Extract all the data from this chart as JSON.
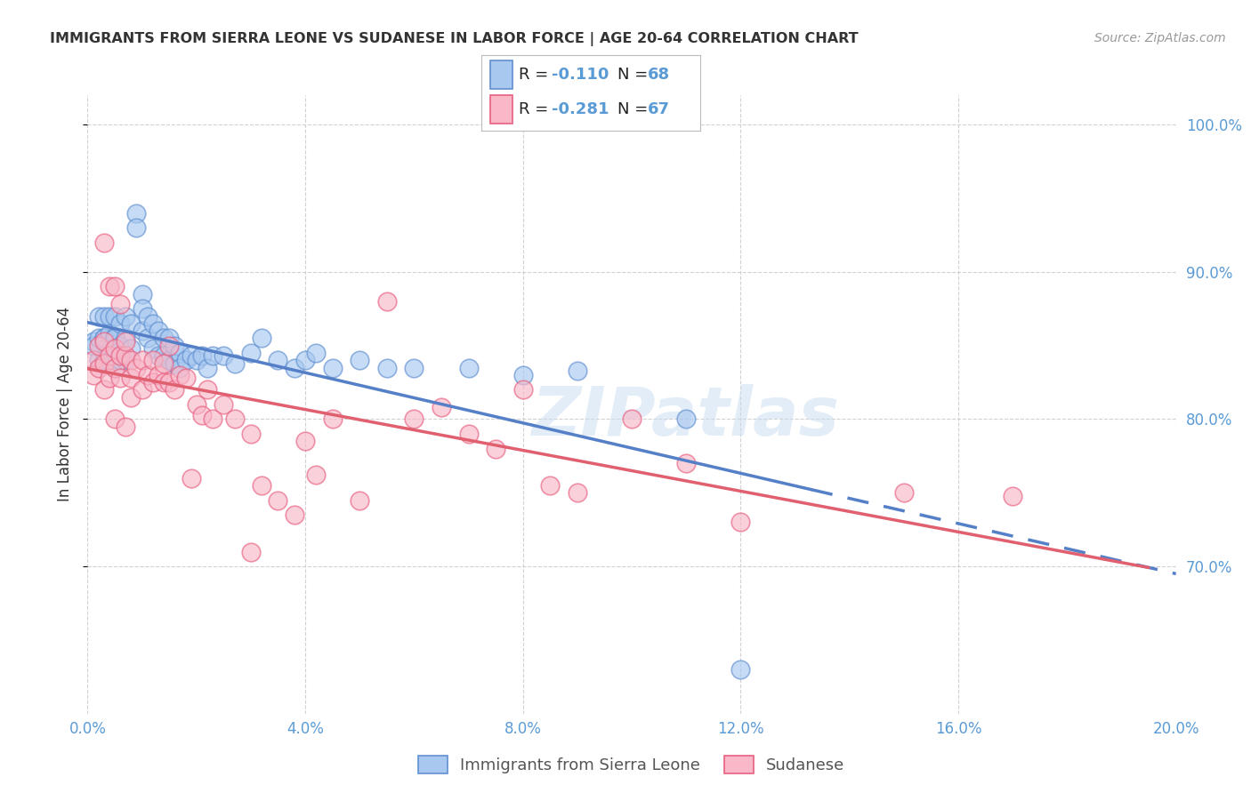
{
  "title": "IMMIGRANTS FROM SIERRA LEONE VS SUDANESE IN LABOR FORCE | AGE 20-64 CORRELATION CHART",
  "source": "Source: ZipAtlas.com",
  "ylabel": "In Labor Force | Age 20-64",
  "legend_label_1": "Immigrants from Sierra Leone",
  "legend_label_2": "Sudanese",
  "r1": -0.11,
  "n1": 68,
  "r2": -0.281,
  "n2": 67,
  "xlim": [
    0.0,
    0.2
  ],
  "ylim": [
    0.6,
    1.02
  ],
  "yticks": [
    0.7,
    0.8,
    0.9,
    1.0
  ],
  "xticks": [
    0.0,
    0.04,
    0.08,
    0.12,
    0.16,
    0.2
  ],
  "color_blue_fill": "#A8C8F0",
  "color_pink_fill": "#F8B8C8",
  "color_blue_edge": "#6090D0",
  "color_pink_edge": "#E86080",
  "color_blue_line": "#5580C8",
  "color_pink_line": "#E06070",
  "color_axis_labels": "#5B9BD5",
  "color_text_dark": "#333333",
  "background_color": "#FFFFFF",
  "watermark": "ZIPatlas",
  "sierra_leone_x": [
    0.001,
    0.001,
    0.002,
    0.002,
    0.002,
    0.003,
    0.003,
    0.003,
    0.003,
    0.004,
    0.004,
    0.004,
    0.004,
    0.005,
    0.005,
    0.005,
    0.005,
    0.005,
    0.006,
    0.006,
    0.006,
    0.007,
    0.007,
    0.007,
    0.008,
    0.008,
    0.009,
    0.009,
    0.01,
    0.01,
    0.01,
    0.011,
    0.011,
    0.012,
    0.012,
    0.013,
    0.013,
    0.014,
    0.014,
    0.015,
    0.015,
    0.016,
    0.016,
    0.017,
    0.017,
    0.018,
    0.019,
    0.02,
    0.021,
    0.022,
    0.023,
    0.025,
    0.027,
    0.03,
    0.032,
    0.035,
    0.038,
    0.04,
    0.042,
    0.045,
    0.05,
    0.055,
    0.06,
    0.07,
    0.08,
    0.09,
    0.11,
    0.12
  ],
  "sierra_leone_y": [
    0.853,
    0.85,
    0.87,
    0.855,
    0.84,
    0.87,
    0.855,
    0.84,
    0.855,
    0.87,
    0.858,
    0.845,
    0.84,
    0.87,
    0.856,
    0.845,
    0.835,
    0.855,
    0.865,
    0.85,
    0.84,
    0.87,
    0.855,
    0.84,
    0.865,
    0.848,
    0.94,
    0.93,
    0.885,
    0.875,
    0.86,
    0.87,
    0.855,
    0.865,
    0.848,
    0.86,
    0.843,
    0.855,
    0.843,
    0.855,
    0.84,
    0.85,
    0.838,
    0.845,
    0.835,
    0.84,
    0.843,
    0.84,
    0.843,
    0.835,
    0.843,
    0.843,
    0.838,
    0.845,
    0.855,
    0.84,
    0.835,
    0.84,
    0.845,
    0.835,
    0.84,
    0.835,
    0.835,
    0.835,
    0.83,
    0.833,
    0.8,
    0.63
  ],
  "sudanese_x": [
    0.001,
    0.001,
    0.002,
    0.002,
    0.003,
    0.003,
    0.003,
    0.004,
    0.004,
    0.005,
    0.005,
    0.005,
    0.006,
    0.006,
    0.007,
    0.007,
    0.008,
    0.008,
    0.008,
    0.009,
    0.01,
    0.01,
    0.011,
    0.012,
    0.012,
    0.013,
    0.014,
    0.014,
    0.015,
    0.015,
    0.016,
    0.017,
    0.018,
    0.019,
    0.02,
    0.021,
    0.022,
    0.023,
    0.025,
    0.027,
    0.03,
    0.032,
    0.035,
    0.038,
    0.04,
    0.042,
    0.045,
    0.05,
    0.055,
    0.06,
    0.065,
    0.07,
    0.075,
    0.08,
    0.085,
    0.09,
    0.1,
    0.11,
    0.12,
    0.15,
    0.003,
    0.004,
    0.005,
    0.006,
    0.007,
    0.03,
    0.17
  ],
  "sudanese_y": [
    0.84,
    0.83,
    0.85,
    0.835,
    0.853,
    0.838,
    0.82,
    0.843,
    0.828,
    0.848,
    0.835,
    0.8,
    0.843,
    0.828,
    0.843,
    0.795,
    0.84,
    0.828,
    0.815,
    0.835,
    0.84,
    0.82,
    0.83,
    0.825,
    0.84,
    0.83,
    0.825,
    0.838,
    0.85,
    0.825,
    0.82,
    0.83,
    0.828,
    0.76,
    0.81,
    0.803,
    0.82,
    0.8,
    0.81,
    0.8,
    0.79,
    0.755,
    0.745,
    0.735,
    0.785,
    0.762,
    0.8,
    0.745,
    0.88,
    0.8,
    0.808,
    0.79,
    0.78,
    0.82,
    0.755,
    0.75,
    0.8,
    0.77,
    0.73,
    0.75,
    0.92,
    0.89,
    0.89,
    0.878,
    0.853,
    0.71,
    0.748
  ]
}
